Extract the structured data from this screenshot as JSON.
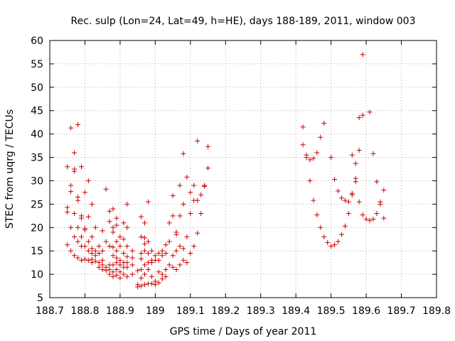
{
  "chart_data": {
    "type": "scatter",
    "title": "Rec. sulp (Lon=24, Lat=49, h=HE), days 188-189, 2011, window 003",
    "xlabel": "GPS time / Days of year 2011",
    "ylabel": "STEC from uqrg / TECUs",
    "xlim": [
      188.7,
      189.8
    ],
    "ylim": [
      5,
      60
    ],
    "x_ticks": [
      188.7,
      188.8,
      188.9,
      189.0,
      189.1,
      189.2,
      189.3,
      189.4,
      189.5,
      189.6,
      189.7,
      189.8
    ],
    "x_tick_labels": [
      "188.7",
      "188.8",
      "188.9",
      "189",
      "189.1",
      "189.2",
      "189.3",
      "189.4",
      "189.5",
      "189.6",
      "189.7",
      "189.8"
    ],
    "y_ticks": [
      5,
      10,
      15,
      20,
      25,
      30,
      35,
      40,
      45,
      50,
      55,
      60
    ],
    "y_tick_labels": [
      "5",
      "10",
      "15",
      "20",
      "25",
      "30",
      "35",
      "40",
      "45",
      "50",
      "55",
      "60"
    ],
    "grid": true,
    "legend": "none",
    "marker": "plus",
    "color": "#cc0000",
    "points": [
      [
        188.75,
        33.0
      ],
      [
        188.75,
        24.3
      ],
      [
        188.75,
        23.3
      ],
      [
        188.75,
        16.3
      ],
      [
        188.76,
        41.3
      ],
      [
        188.76,
        29.0
      ],
      [
        188.76,
        27.7
      ],
      [
        188.76,
        20.0
      ],
      [
        188.76,
        15.0
      ],
      [
        188.77,
        36.0
      ],
      [
        188.77,
        32.5
      ],
      [
        188.77,
        32.0
      ],
      [
        188.77,
        23.0
      ],
      [
        188.77,
        18.0
      ],
      [
        188.77,
        14.0
      ],
      [
        188.78,
        42.0
      ],
      [
        188.78,
        26.5
      ],
      [
        188.78,
        25.8
      ],
      [
        188.78,
        20.0
      ],
      [
        188.78,
        17.0
      ],
      [
        188.78,
        13.5
      ],
      [
        188.79,
        33.0
      ],
      [
        188.79,
        22.5
      ],
      [
        188.79,
        22.0
      ],
      [
        188.79,
        18.0
      ],
      [
        188.79,
        16.0
      ],
      [
        188.79,
        13.0
      ],
      [
        188.8,
        27.5
      ],
      [
        188.8,
        19.8
      ],
      [
        188.8,
        19.5
      ],
      [
        188.8,
        16.0
      ],
      [
        188.8,
        13.2
      ],
      [
        188.81,
        30.0
      ],
      [
        188.81,
        22.3
      ],
      [
        188.81,
        17.0
      ],
      [
        188.81,
        15.0
      ],
      [
        188.81,
        13.0
      ],
      [
        188.82,
        25.0
      ],
      [
        188.82,
        18.0
      ],
      [
        188.82,
        15.5
      ],
      [
        188.82,
        14.5
      ],
      [
        188.82,
        13.2
      ],
      [
        188.82,
        12.5
      ],
      [
        188.83,
        20.0
      ],
      [
        188.83,
        15.0
      ],
      [
        188.83,
        14.0
      ],
      [
        188.83,
        12.8
      ],
      [
        188.84,
        16.0
      ],
      [
        188.84,
        14.5
      ],
      [
        188.84,
        12.5
      ],
      [
        188.84,
        11.5
      ],
      [
        188.85,
        19.3
      ],
      [
        188.85,
        15.0
      ],
      [
        188.85,
        13.0
      ],
      [
        188.85,
        12.0
      ],
      [
        188.85,
        11.0
      ],
      [
        188.86,
        28.2
      ],
      [
        188.86,
        17.0
      ],
      [
        188.86,
        11.5
      ],
      [
        188.86,
        10.8
      ],
      [
        188.87,
        23.5
      ],
      [
        188.87,
        21.3
      ],
      [
        188.87,
        16.0
      ],
      [
        188.87,
        12.0
      ],
      [
        188.87,
        11.0
      ],
      [
        188.87,
        10.0
      ],
      [
        188.88,
        24.0
      ],
      [
        188.88,
        20.0
      ],
      [
        188.88,
        19.0
      ],
      [
        188.88,
        15.8
      ],
      [
        188.88,
        14.0
      ],
      [
        188.88,
        12.0
      ],
      [
        188.88,
        10.5
      ],
      [
        188.88,
        9.5
      ],
      [
        188.89,
        22.0
      ],
      [
        188.89,
        20.5
      ],
      [
        188.89,
        17.0
      ],
      [
        188.89,
        15.0
      ],
      [
        188.89,
        13.5
      ],
      [
        188.89,
        12.5
      ],
      [
        188.89,
        11.0
      ],
      [
        188.89,
        9.8
      ],
      [
        188.9,
        18.0
      ],
      [
        188.9,
        16.0
      ],
      [
        188.9,
        13.0
      ],
      [
        188.9,
        12.0
      ],
      [
        188.9,
        10.5
      ],
      [
        188.9,
        9.2
      ],
      [
        188.91,
        21.0
      ],
      [
        188.91,
        17.5
      ],
      [
        188.91,
        14.5
      ],
      [
        188.91,
        12.5
      ],
      [
        188.91,
        11.5
      ],
      [
        188.91,
        10.0
      ],
      [
        188.92,
        25.0
      ],
      [
        188.92,
        20.0
      ],
      [
        188.92,
        16.0
      ],
      [
        188.92,
        13.8
      ],
      [
        188.92,
        12.5
      ],
      [
        188.92,
        11.5
      ],
      [
        188.92,
        9.5
      ],
      [
        188.935,
        15.0
      ],
      [
        188.935,
        13.5
      ],
      [
        188.935,
        12.0
      ],
      [
        188.935,
        10.0
      ],
      [
        188.95,
        10.8
      ],
      [
        188.95,
        7.8
      ],
      [
        188.95,
        7.3
      ],
      [
        188.96,
        22.3
      ],
      [
        188.96,
        18.0
      ],
      [
        188.96,
        14.5
      ],
      [
        188.96,
        13.3
      ],
      [
        188.96,
        11.0
      ],
      [
        188.96,
        9.2
      ],
      [
        188.96,
        7.5
      ],
      [
        188.97,
        21.0
      ],
      [
        188.97,
        17.8
      ],
      [
        188.97,
        16.5
      ],
      [
        188.97,
        15.0
      ],
      [
        188.97,
        12.0
      ],
      [
        188.97,
        10.0
      ],
      [
        188.97,
        7.8
      ],
      [
        188.98,
        25.5
      ],
      [
        188.98,
        17.0
      ],
      [
        188.98,
        14.5
      ],
      [
        188.98,
        12.5
      ],
      [
        188.98,
        11.0
      ],
      [
        188.98,
        8.0
      ],
      [
        188.99,
        15.0
      ],
      [
        188.99,
        13.0
      ],
      [
        188.99,
        12.5
      ],
      [
        188.99,
        9.5
      ],
      [
        188.99,
        8.0
      ],
      [
        189.0,
        14.0
      ],
      [
        189.0,
        13.0
      ],
      [
        189.0,
        8.5
      ],
      [
        189.0,
        7.8
      ],
      [
        189.01,
        14.5
      ],
      [
        189.01,
        13.0
      ],
      [
        189.01,
        10.5
      ],
      [
        189.01,
        8.2
      ],
      [
        189.02,
        15.0
      ],
      [
        189.02,
        14.0
      ],
      [
        189.02,
        10.0
      ],
      [
        189.02,
        9.0
      ],
      [
        189.03,
        16.3
      ],
      [
        189.03,
        14.5
      ],
      [
        189.03,
        11.0
      ],
      [
        189.03,
        9.5
      ],
      [
        189.04,
        21.0
      ],
      [
        189.04,
        17.0
      ],
      [
        189.04,
        12.0
      ],
      [
        189.05,
        26.8
      ],
      [
        189.05,
        22.5
      ],
      [
        189.05,
        14.0
      ],
      [
        189.05,
        11.5
      ],
      [
        189.06,
        19.0
      ],
      [
        189.06,
        18.5
      ],
      [
        189.06,
        15.0
      ],
      [
        189.06,
        11.0
      ],
      [
        189.07,
        29.0
      ],
      [
        189.07,
        22.5
      ],
      [
        189.07,
        16.0
      ],
      [
        189.07,
        12.0
      ],
      [
        189.08,
        35.8
      ],
      [
        189.08,
        25.0
      ],
      [
        189.08,
        15.5
      ],
      [
        189.08,
        13.0
      ],
      [
        189.09,
        30.8
      ],
      [
        189.09,
        18.0
      ],
      [
        189.09,
        12.5
      ],
      [
        189.1,
        27.5
      ],
      [
        189.1,
        23.0
      ],
      [
        189.1,
        14.5
      ],
      [
        189.11,
        29.0
      ],
      [
        189.11,
        25.8
      ],
      [
        189.11,
        16.0
      ],
      [
        189.12,
        38.5
      ],
      [
        189.12,
        25.8
      ],
      [
        189.12,
        18.8
      ],
      [
        189.13,
        27.0
      ],
      [
        189.13,
        23.0
      ],
      [
        189.14,
        29.0
      ],
      [
        189.14,
        28.8
      ],
      [
        189.15,
        37.3
      ],
      [
        189.15,
        32.7
      ],
      [
        189.42,
        41.5
      ],
      [
        189.42,
        37.7
      ],
      [
        189.43,
        35.5
      ],
      [
        189.43,
        35.0
      ],
      [
        189.44,
        30.0
      ],
      [
        189.44,
        34.5
      ],
      [
        189.45,
        34.8
      ],
      [
        189.45,
        25.8
      ],
      [
        189.46,
        36.0
      ],
      [
        189.46,
        22.7
      ],
      [
        189.47,
        39.3
      ],
      [
        189.47,
        20.0
      ],
      [
        189.48,
        42.3
      ],
      [
        189.48,
        18.0
      ],
      [
        189.49,
        16.8
      ],
      [
        189.5,
        35.0
      ],
      [
        189.5,
        16.0
      ],
      [
        189.51,
        30.3
      ],
      [
        189.51,
        16.3
      ],
      [
        189.52,
        27.8
      ],
      [
        189.52,
        17.0
      ],
      [
        189.53,
        26.3
      ],
      [
        189.53,
        18.5
      ],
      [
        189.54,
        25.8
      ],
      [
        189.54,
        20.3
      ],
      [
        189.55,
        25.5
      ],
      [
        189.55,
        23.0
      ],
      [
        189.56,
        35.5
      ],
      [
        189.56,
        27.3
      ],
      [
        189.56,
        27.0
      ],
      [
        189.57,
        33.7
      ],
      [
        189.57,
        30.5
      ],
      [
        189.57,
        29.8
      ],
      [
        189.58,
        43.5
      ],
      [
        189.58,
        36.5
      ],
      [
        189.58,
        25.5
      ],
      [
        189.59,
        57.0
      ],
      [
        189.59,
        44.0
      ],
      [
        189.59,
        22.7
      ],
      [
        189.6,
        21.8
      ],
      [
        189.61,
        44.7
      ],
      [
        189.61,
        21.5
      ],
      [
        189.62,
        35.8
      ],
      [
        189.62,
        21.8
      ],
      [
        189.63,
        29.8
      ],
      [
        189.63,
        23.0
      ],
      [
        189.64,
        25.5
      ],
      [
        189.64,
        25.0
      ],
      [
        189.65,
        28.0
      ],
      [
        189.65,
        22.0
      ]
    ]
  }
}
